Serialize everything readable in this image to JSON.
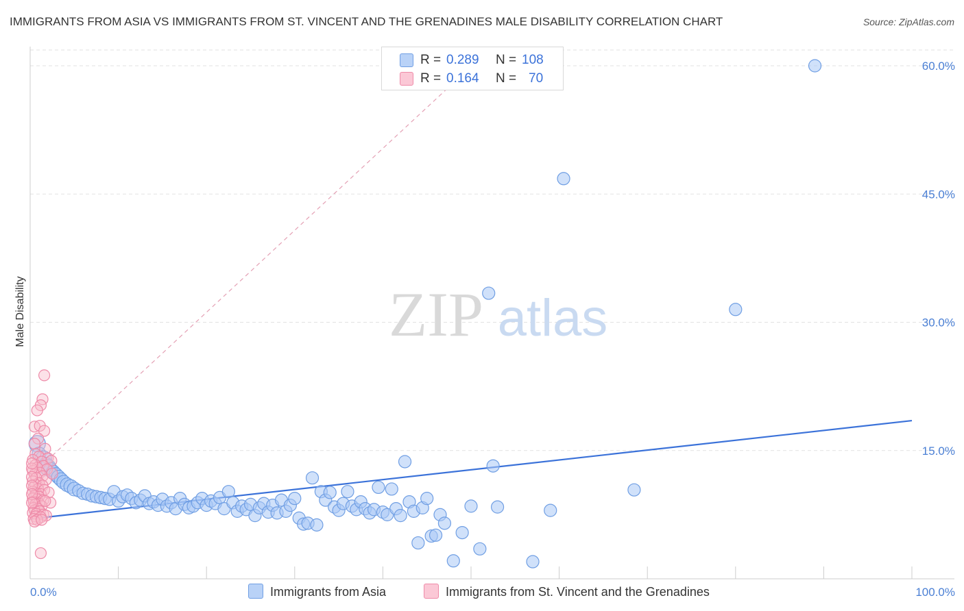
{
  "title": "IMMIGRANTS FROM ASIA VS IMMIGRANTS FROM ST. VINCENT AND THE GRENADINES MALE DISABILITY CORRELATION CHART",
  "source": "Source: ZipAtlas.com",
  "watermark": {
    "zip": "ZIP",
    "atlas": "atlas"
  },
  "legend_stats": [
    {
      "r_label": "R =",
      "r_value": "0.289",
      "n_label": "N =",
      "n_value": "108"
    },
    {
      "r_label": "R =",
      "r_value": "0.164",
      "n_label": "N =",
      "n_value": "70"
    }
  ],
  "colors": {
    "asia_fill": "#aac8f5",
    "asia_stroke": "#6f9ee3",
    "asia_line": "#3b72d9",
    "svg_fill": "#f8bccd",
    "svg_stroke": "#ee8aa8",
    "svg_line": "#e4a0b4",
    "tick": "#4a7fd4",
    "grid": "#e2e2e2"
  },
  "chart_data": {
    "type": "scatter",
    "title": "IMMIGRANTS FROM ASIA VS IMMIGRANTS FROM ST. VINCENT AND THE GRENADINES MALE DISABILITY CORRELATION CHART",
    "xlabel": "",
    "ylabel": "Male Disability",
    "xlim": [
      0,
      100
    ],
    "ylim": [
      0,
      62
    ],
    "x_tick_labels": [
      "0.0%",
      "100.0%"
    ],
    "y_ticks": [
      15,
      30,
      45,
      60
    ],
    "y_tick_labels": [
      "15.0%",
      "30.0%",
      "45.0%",
      "60.0%"
    ],
    "grid": true,
    "legend_position": "top-center",
    "series": [
      {
        "name": "Immigrants from Asia",
        "trend": {
          "x": [
            0,
            100
          ],
          "y": [
            7.0,
            18.5
          ],
          "style": "solid"
        },
        "points": [
          [
            0.8,
            15.8,
            12
          ],
          [
            1.0,
            14.6,
            10
          ],
          [
            1.5,
            14.0,
            12
          ],
          [
            1.8,
            13.4,
            10
          ],
          [
            2.0,
            13.0,
            12
          ],
          [
            2.3,
            12.8,
            10
          ],
          [
            2.6,
            12.5,
            10
          ],
          [
            2.9,
            12.2,
            10
          ],
          [
            3.2,
            11.9,
            10
          ],
          [
            3.5,
            11.6,
            10
          ],
          [
            3.8,
            11.3,
            10
          ],
          [
            4.2,
            11.0,
            10
          ],
          [
            4.6,
            10.8,
            10
          ],
          [
            5.0,
            10.5,
            10
          ],
          [
            5.5,
            10.3,
            9
          ],
          [
            6.0,
            10.0,
            9
          ],
          [
            6.5,
            9.9,
            9
          ],
          [
            7.0,
            9.7,
            9
          ],
          [
            7.5,
            9.6,
            9
          ],
          [
            8.0,
            9.5,
            9
          ],
          [
            8.5,
            9.4,
            9
          ],
          [
            9.0,
            9.3,
            9
          ],
          [
            9.5,
            10.2,
            9
          ],
          [
            10.0,
            9.1,
            9
          ],
          [
            10.5,
            9.6,
            9
          ],
          [
            11.0,
            9.8,
            9
          ],
          [
            11.5,
            9.4,
            9
          ],
          [
            12.0,
            8.9,
            9
          ],
          [
            12.5,
            9.2,
            9
          ],
          [
            13.0,
            9.7,
            9
          ],
          [
            13.5,
            8.8,
            9
          ],
          [
            14.0,
            9.0,
            9
          ],
          [
            14.5,
            8.6,
            9
          ],
          [
            15.0,
            9.3,
            9
          ],
          [
            15.5,
            8.5,
            9
          ],
          [
            16.0,
            8.9,
            9
          ],
          [
            16.5,
            8.2,
            9
          ],
          [
            17.0,
            9.4,
            9
          ],
          [
            17.5,
            8.7,
            9
          ],
          [
            18.0,
            8.3,
            9
          ],
          [
            18.5,
            8.5,
            9
          ],
          [
            19.0,
            8.9,
            9
          ],
          [
            19.5,
            9.4,
            9
          ],
          [
            20.0,
            8.6,
            9
          ],
          [
            20.5,
            9.1,
            9
          ],
          [
            21.0,
            8.8,
            9
          ],
          [
            21.5,
            9.5,
            9
          ],
          [
            22.0,
            8.2,
            9
          ],
          [
            22.5,
            10.2,
            9
          ],
          [
            23.0,
            8.9,
            9
          ],
          [
            23.5,
            7.9,
            9
          ],
          [
            24.0,
            8.5,
            9
          ],
          [
            24.5,
            8.1,
            9
          ],
          [
            25.0,
            8.7,
            9
          ],
          [
            25.5,
            7.4,
            9
          ],
          [
            26.0,
            8.3,
            9
          ],
          [
            26.5,
            8.8,
            9
          ],
          [
            27.0,
            7.8,
            9
          ],
          [
            27.5,
            8.6,
            9
          ],
          [
            28.0,
            7.7,
            9
          ],
          [
            28.5,
            9.2,
            9
          ],
          [
            29.0,
            7.9,
            9
          ],
          [
            29.5,
            8.6,
            9
          ],
          [
            30.0,
            9.4,
            9
          ],
          [
            30.5,
            7.1,
            9
          ],
          [
            31.0,
            6.4,
            9
          ],
          [
            31.5,
            6.5,
            9
          ],
          [
            32.0,
            11.8,
            9
          ],
          [
            32.5,
            6.3,
            9
          ],
          [
            33.0,
            10.2,
            9
          ],
          [
            33.5,
            9.2,
            9
          ],
          [
            34.0,
            10.1,
            9
          ],
          [
            34.5,
            8.4,
            9
          ],
          [
            35.0,
            8.0,
            9
          ],
          [
            35.5,
            8.8,
            9
          ],
          [
            36.0,
            10.2,
            9
          ],
          [
            36.5,
            8.5,
            9
          ],
          [
            37.0,
            8.1,
            9
          ],
          [
            37.5,
            9.0,
            9
          ],
          [
            38.0,
            8.2,
            9
          ],
          [
            38.5,
            7.7,
            9
          ],
          [
            39.0,
            8.1,
            9
          ],
          [
            39.5,
            10.7,
            9
          ],
          [
            40.0,
            7.8,
            9
          ],
          [
            40.5,
            7.5,
            9
          ],
          [
            41.0,
            10.5,
            9
          ],
          [
            41.5,
            8.2,
            9
          ],
          [
            42.0,
            7.4,
            9
          ],
          [
            42.5,
            13.7,
            9
          ],
          [
            43.0,
            9.0,
            9
          ],
          [
            43.5,
            7.9,
            9
          ],
          [
            44.0,
            4.2,
            9
          ],
          [
            44.5,
            8.3,
            9
          ],
          [
            45.0,
            9.4,
            9
          ],
          [
            45.5,
            5.0,
            9
          ],
          [
            46.0,
            5.1,
            9
          ],
          [
            46.5,
            7.5,
            9
          ],
          [
            47.0,
            6.5,
            9
          ],
          [
            48.0,
            2.1,
            9
          ],
          [
            49.0,
            5.4,
            9
          ],
          [
            50.0,
            8.5,
            9
          ],
          [
            51.0,
            3.5,
            9
          ],
          [
            52.0,
            33.4,
            9
          ],
          [
            52.5,
            13.2,
            9
          ],
          [
            53.0,
            8.4,
            9
          ],
          [
            57.0,
            2.0,
            9
          ],
          [
            59.0,
            8.0,
            9
          ],
          [
            60.5,
            46.8,
            9
          ],
          [
            68.5,
            10.4,
            9
          ],
          [
            80.0,
            31.5,
            9
          ],
          [
            89.0,
            60.0,
            9
          ]
        ]
      },
      {
        "name": "Immigrants from St. Vincent and the Grenadines",
        "trend": {
          "x": [
            0,
            48
          ],
          "y": [
            12.0,
            58.0
          ],
          "style": "dashed"
        },
        "points": [
          [
            1.6,
            23.8,
            8
          ],
          [
            1.4,
            21.0,
            8
          ],
          [
            1.2,
            20.3,
            8
          ],
          [
            0.8,
            19.7,
            8
          ],
          [
            0.5,
            17.8,
            8
          ],
          [
            1.1,
            17.9,
            8
          ],
          [
            1.6,
            17.3,
            8
          ],
          [
            0.9,
            16.4,
            8
          ],
          [
            0.5,
            15.8,
            8
          ],
          [
            1.7,
            15.2,
            8
          ],
          [
            0.6,
            14.6,
            8
          ],
          [
            1.0,
            14.3,
            8
          ],
          [
            2.0,
            14.1,
            8
          ],
          [
            0.3,
            13.9,
            8
          ],
          [
            1.3,
            13.7,
            8
          ],
          [
            2.4,
            13.8,
            8
          ],
          [
            0.6,
            13.3,
            8
          ],
          [
            1.5,
            13.2,
            8
          ],
          [
            0.8,
            13.0,
            8
          ],
          [
            1.9,
            12.8,
            8
          ],
          [
            0.3,
            12.6,
            8
          ],
          [
            1.1,
            12.4,
            8
          ],
          [
            0.5,
            12.2,
            8
          ],
          [
            1.4,
            12.0,
            8
          ],
          [
            0.7,
            11.8,
            8
          ],
          [
            1.8,
            11.6,
            8
          ],
          [
            0.3,
            11.4,
            8
          ],
          [
            1.0,
            11.2,
            8
          ],
          [
            0.6,
            11.0,
            8
          ],
          [
            1.4,
            10.9,
            8
          ],
          [
            0.4,
            10.7,
            8
          ],
          [
            0.9,
            10.5,
            8
          ],
          [
            1.6,
            10.4,
            8
          ],
          [
            0.3,
            10.2,
            8
          ],
          [
            0.7,
            10.0,
            8
          ],
          [
            1.2,
            9.9,
            8
          ],
          [
            0.5,
            9.7,
            8
          ],
          [
            1.0,
            9.6,
            8
          ],
          [
            0.3,
            9.4,
            8
          ],
          [
            0.8,
            9.3,
            8
          ],
          [
            1.5,
            9.2,
            8
          ],
          [
            0.4,
            9.0,
            8
          ],
          [
            2.3,
            8.9,
            8
          ],
          [
            1.0,
            8.8,
            8
          ],
          [
            0.6,
            8.7,
            8
          ],
          [
            1.3,
            8.5,
            8
          ],
          [
            0.4,
            8.3,
            8
          ],
          [
            0.9,
            8.2,
            8
          ],
          [
            0.5,
            8.0,
            8
          ],
          [
            1.1,
            7.9,
            8
          ],
          [
            0.3,
            7.7,
            8
          ],
          [
            0.7,
            7.6,
            8
          ],
          [
            1.5,
            7.5,
            8
          ],
          [
            1.8,
            7.4,
            8
          ],
          [
            0.6,
            7.3,
            8
          ],
          [
            1.2,
            7.2,
            8
          ],
          [
            0.4,
            7.0,
            8
          ],
          [
            0.8,
            6.9,
            8
          ],
          [
            0.5,
            6.7,
            8
          ],
          [
            1.2,
            3.0,
            8
          ],
          [
            0.2,
            12.9,
            8
          ],
          [
            0.2,
            11.9,
            8
          ],
          [
            0.2,
            10.9,
            8
          ],
          [
            0.2,
            9.9,
            8
          ],
          [
            0.2,
            8.9,
            8
          ],
          [
            0.2,
            13.5,
            8
          ],
          [
            2.1,
            10.1,
            8
          ],
          [
            1.7,
            9.1,
            8
          ],
          [
            2.5,
            12.3,
            8
          ],
          [
            1.3,
            6.9,
            8
          ]
        ]
      }
    ]
  },
  "bottom_legend": [
    {
      "label": "Immigrants from Asia"
    },
    {
      "label": "Immigrants from St. Vincent and the Grenadines"
    }
  ]
}
